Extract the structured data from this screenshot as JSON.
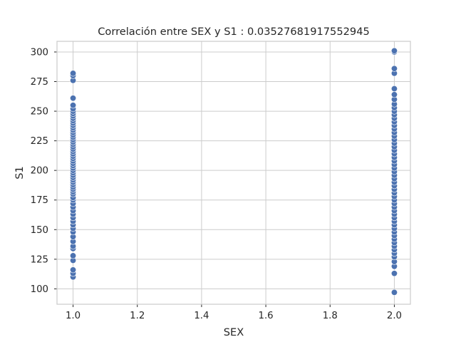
{
  "chart_data": {
    "type": "scatter",
    "title": "Correlación entre SEX y S1 : 0.03527681917552945",
    "xlabel": "SEX",
    "ylabel": "S1",
    "xlim": [
      0.95,
      2.05
    ],
    "ylim": [
      87,
      309
    ],
    "x_ticks": [
      1.0,
      1.2,
      1.4,
      1.6,
      1.8,
      2.0
    ],
    "x_tick_labels": [
      "1.0",
      "1.2",
      "1.4",
      "1.6",
      "1.8",
      "2.0"
    ],
    "y_ticks": [
      100,
      125,
      150,
      175,
      200,
      225,
      250,
      275,
      300
    ],
    "y_tick_labels": [
      "100",
      "125",
      "150",
      "175",
      "200",
      "225",
      "250",
      "275",
      "300"
    ],
    "grid": true,
    "color": "#4c72b0",
    "series": [
      {
        "x": 1.0,
        "values": [
          110,
          113,
          116,
          124,
          128,
          134,
          136,
          140,
          144,
          148,
          151,
          154,
          157,
          160,
          163,
          166,
          169,
          172,
          175,
          177,
          180,
          182,
          184,
          186,
          188,
          190,
          192,
          194,
          196,
          198,
          200,
          202,
          204,
          206,
          208,
          210,
          212,
          214,
          216,
          218,
          220,
          222,
          224,
          226,
          228,
          230,
          232,
          234,
          236,
          238,
          240,
          242,
          244,
          246,
          248,
          250,
          252,
          255,
          261,
          276,
          280,
          282
        ]
      },
      {
        "x": 2.0,
        "values": [
          97,
          113,
          119,
          123,
          127,
          130,
          133,
          136,
          139,
          142,
          145,
          148,
          151,
          154,
          157,
          160,
          163,
          166,
          169,
          172,
          175,
          178,
          181,
          184,
          187,
          190,
          193,
          196,
          199,
          202,
          205,
          208,
          211,
          214,
          217,
          220,
          223,
          226,
          229,
          232,
          235,
          238,
          241,
          244,
          247,
          250,
          253,
          256,
          260,
          264,
          269,
          282,
          286,
          300,
          301
        ]
      }
    ]
  }
}
